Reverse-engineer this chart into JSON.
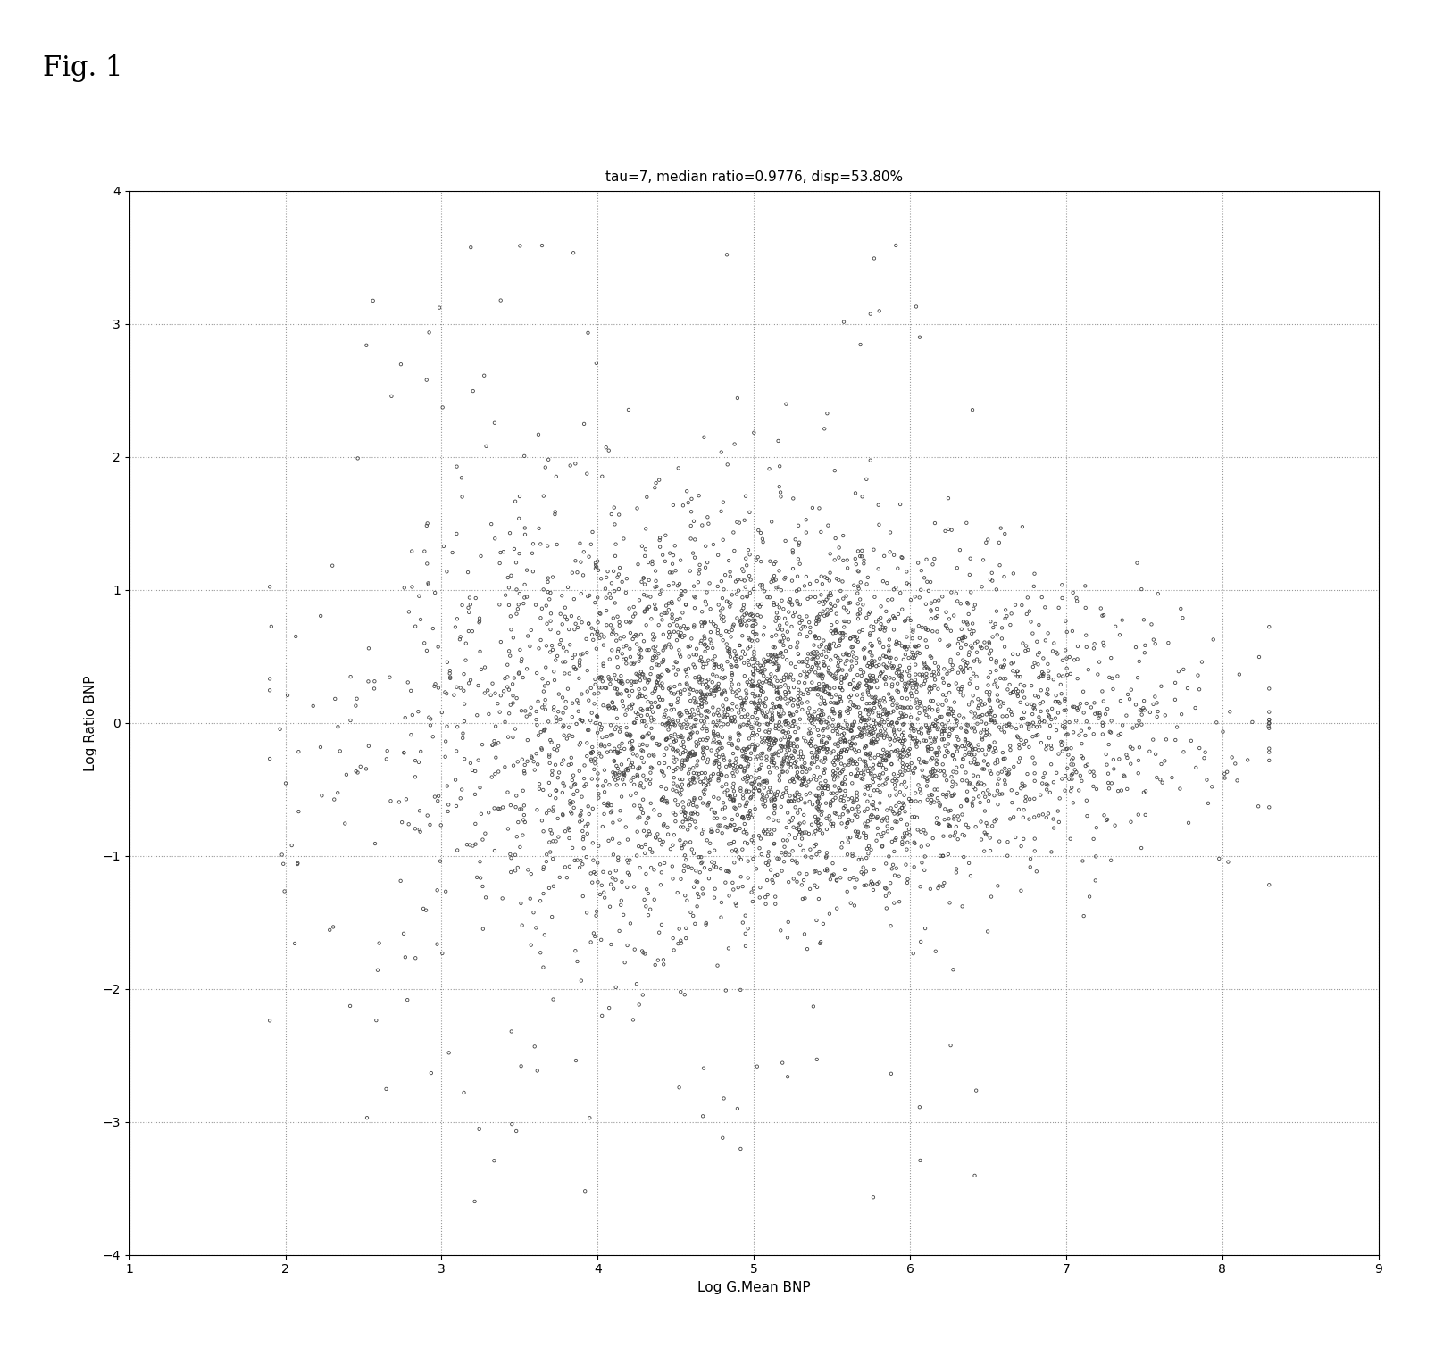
{
  "title": "tau=7, median ratio=0.9776, disp=53.80%",
  "xlabel": "Log G.Mean BNP",
  "ylabel": "Log Ratio BNP",
  "xlim": [
    1,
    9
  ],
  "ylim": [
    -4,
    4
  ],
  "xticks": [
    1,
    2,
    3,
    4,
    5,
    6,
    7,
    8,
    9
  ],
  "yticks": [
    -4,
    -3,
    -2,
    -1,
    0,
    1,
    2,
    3,
    4
  ],
  "grid_color": "#999999",
  "dot_color": "#444444",
  "dot_size": 6,
  "dot_linewidth": 0.6,
  "fig_label": "Fig. 1",
  "background_color": "#ffffff",
  "n_points": 5000,
  "seed": 42,
  "title_fontsize": 11,
  "axis_label_fontsize": 11,
  "tick_fontsize": 10,
  "fig_label_fontsize": 22
}
